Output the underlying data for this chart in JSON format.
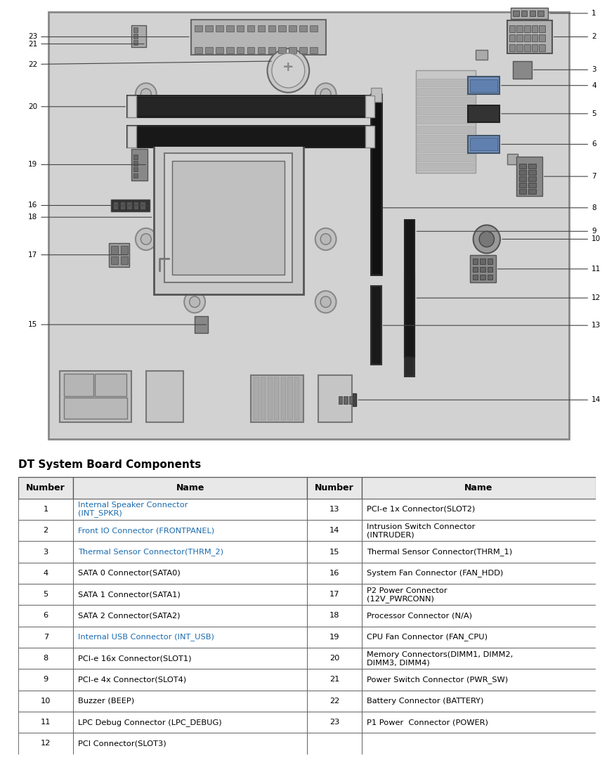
{
  "title": "DT System Board Components",
  "table_header": [
    "Number",
    "Name",
    "Number",
    "Name"
  ],
  "table_data": [
    [
      "1",
      "Internal Speaker Connector\n(INT_SPKR)",
      "13",
      "PCI-e 1x Connector(SLOT2)"
    ],
    [
      "2",
      "Front IO Connector (FRONTPANEL)",
      "14",
      "Intrusion Switch Connector\n(INTRUDER)"
    ],
    [
      "3",
      "Thermal Sensor Connector(THRM_2)",
      "15",
      "Thermal Sensor Connector(THRM_1)"
    ],
    [
      "4",
      "SATA 0 Connector(SATA0)",
      "16",
      "System Fan Connector (FAN_HDD)"
    ],
    [
      "5",
      "SATA 1 Connector(SATA1)",
      "17",
      "P2 Power Connector\n(12V_PWRCONN)"
    ],
    [
      "6",
      "SATA 2 Connector(SATA2)",
      "18",
      "Processor Connector (N/A)"
    ],
    [
      "7",
      "Internal USB Connector (INT_USB)",
      "19",
      "CPU Fan Connector (FAN_CPU)"
    ],
    [
      "8",
      "PCI-e 16x Connector(SLOT1)",
      "20",
      "Memory Connectors(DIMM1, DIMM2,\nDIMM3, DIMM4)"
    ],
    [
      "9",
      "PCI-e 4x Connector(SLOT4)",
      "21",
      "Power Switch Connector (PWR_SW)"
    ],
    [
      "10",
      "Buzzer (BEEP)",
      "22",
      "Battery Connector (BATTERY)"
    ],
    [
      "11",
      "LPC Debug Connector (LPC_DEBUG)",
      "23",
      "P1 Power  Connector (POWER)"
    ],
    [
      "12",
      "PCI Connector(SLOT3)",
      "",
      ""
    ]
  ],
  "header_color": "#e8e8e8",
  "border_color": "#555555",
  "text_color_name_blue": "#1a6aad",
  "text_color_black": "#000000",
  "bg_color": "#ffffff",
  "board_color": "#d0d0d0",
  "board_edge": "#888888",
  "fig_width": 8.74,
  "fig_height": 10.79,
  "table_title_fontsize": 11,
  "header_fontsize": 9,
  "cell_fontsize": 8.2,
  "label_fontsize": 7.5
}
